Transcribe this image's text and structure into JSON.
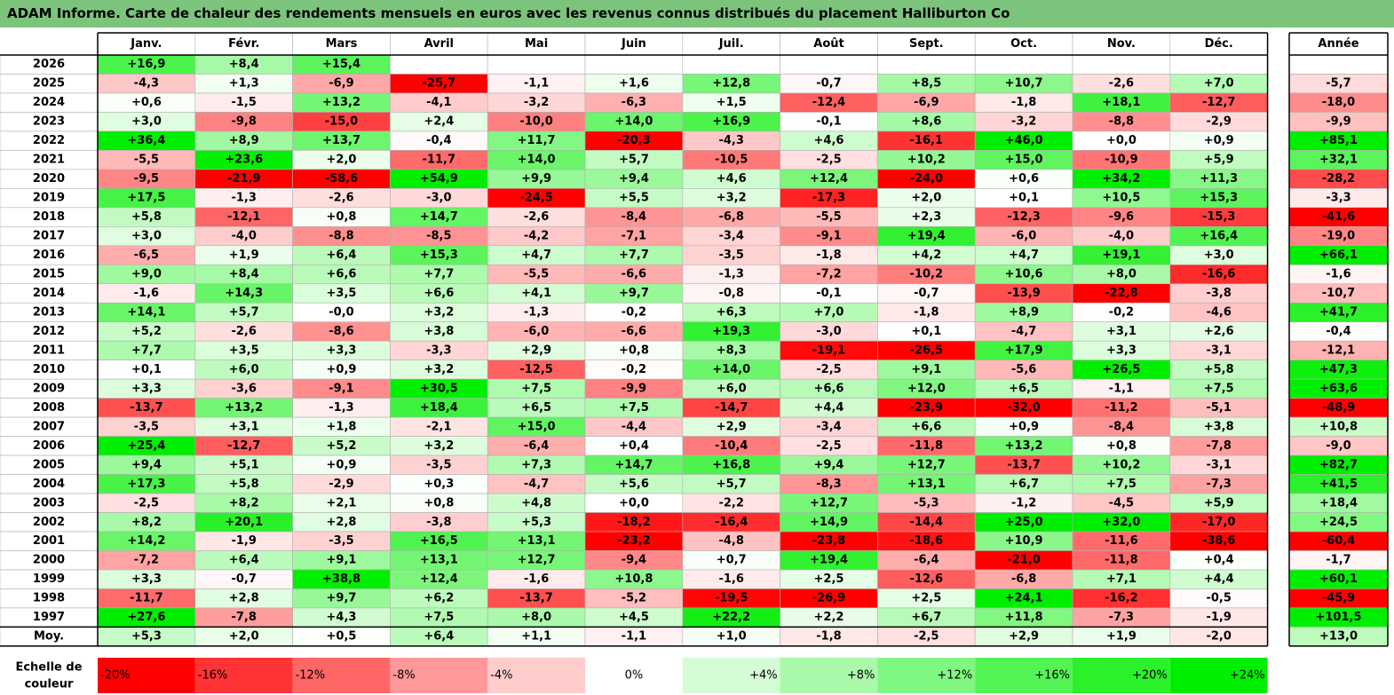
{
  "title": "ADAM Informe. Carte de chaleur des rendements mensuels en euros avec les revenus connus distribués du placement Halliburton Co",
  "chart_data": {
    "type": "heatmap",
    "months": [
      "Janv.",
      "Févr.",
      "Mars",
      "Avril",
      "Mai",
      "Juin",
      "Juil.",
      "Août",
      "Sept.",
      "Oct.",
      "Nov.",
      "Déc."
    ],
    "year_column_header": "Année",
    "rows": [
      {
        "year": "2026",
        "months": [
          "+16,9",
          "+8,4",
          "+15,4",
          "",
          "",
          "",
          "",
          "",
          "",
          "",
          "",
          ""
        ],
        "annual": ""
      },
      {
        "year": "2025",
        "months": [
          "-4,3",
          "+1,3",
          "-6,9",
          "-25,7",
          "-1,1",
          "+1,6",
          "+12,8",
          "-0,7",
          "+8,5",
          "+10,7",
          "-2,6",
          "+7,0"
        ],
        "annual": "-5,7"
      },
      {
        "year": "2024",
        "months": [
          "+0,6",
          "-1,5",
          "+13,2",
          "-4,1",
          "-3,2",
          "-6,3",
          "+1,5",
          "-12,4",
          "-6,9",
          "-1,8",
          "+18,1",
          "-12,7"
        ],
        "annual": "-18,0"
      },
      {
        "year": "2023",
        "months": [
          "+3,0",
          "-9,8",
          "-15,0",
          "+2,4",
          "-10,0",
          "+14,0",
          "+16,9",
          "-0,1",
          "+8,6",
          "-3,2",
          "-8,8",
          "-2,9"
        ],
        "annual": "-9,9"
      },
      {
        "year": "2022",
        "months": [
          "+36,4",
          "+8,9",
          "+13,7",
          "-0,4",
          "+11,7",
          "-20,3",
          "-4,3",
          "+4,6",
          "-16,1",
          "+46,0",
          "+0,0",
          "+0,9"
        ],
        "annual": "+85,1"
      },
      {
        "year": "2021",
        "months": [
          "-5,5",
          "+23,6",
          "+2,0",
          "-11,7",
          "+14,0",
          "+5,7",
          "-10,5",
          "-2,5",
          "+10,2",
          "+15,0",
          "-10,9",
          "+5,9"
        ],
        "annual": "+32,1"
      },
      {
        "year": "2020",
        "months": [
          "-9,5",
          "-21,9",
          "-58,6",
          "+54,9",
          "+9,9",
          "+9,4",
          "+4,6",
          "+12,4",
          "-24,0",
          "+0,6",
          "+34,2",
          "+11,3"
        ],
        "annual": "-28,2"
      },
      {
        "year": "2019",
        "months": [
          "+17,5",
          "-1,3",
          "-2,6",
          "-3,0",
          "-24,5",
          "+5,5",
          "+3,2",
          "-17,3",
          "+2,0",
          "+0,1",
          "+10,5",
          "+15,3"
        ],
        "annual": "-3,3"
      },
      {
        "year": "2018",
        "months": [
          "+5,8",
          "-12,1",
          "+0,8",
          "+14,7",
          "-2,6",
          "-8,4",
          "-6,8",
          "-5,5",
          "+2,3",
          "-12,3",
          "-9,6",
          "-15,3"
        ],
        "annual": "-41,6"
      },
      {
        "year": "2017",
        "months": [
          "+3,0",
          "-4,0",
          "-8,8",
          "-8,5",
          "-4,2",
          "-7,1",
          "-3,4",
          "-9,1",
          "+19,4",
          "-6,0",
          "-4,0",
          "+16,4"
        ],
        "annual": "-19,0"
      },
      {
        "year": "2016",
        "months": [
          "-6,5",
          "+1,9",
          "+6,4",
          "+15,3",
          "+4,7",
          "+7,7",
          "-3,5",
          "-1,8",
          "+4,2",
          "+4,7",
          "+19,1",
          "+3,0"
        ],
        "annual": "+66,1"
      },
      {
        "year": "2015",
        "months": [
          "+9,0",
          "+8,4",
          "+6,6",
          "+7,7",
          "-5,5",
          "-6,6",
          "-1,3",
          "-7,2",
          "-10,2",
          "+10,6",
          "+8,0",
          "-16,6"
        ],
        "annual": "-1,6"
      },
      {
        "year": "2014",
        "months": [
          "-1,6",
          "+14,3",
          "+3,5",
          "+6,6",
          "+4,1",
          "+9,7",
          "-0,8",
          "-0,1",
          "-0,7",
          "-13,9",
          "-22,8",
          "-3,8"
        ],
        "annual": "-10,7"
      },
      {
        "year": "2013",
        "months": [
          "+14,1",
          "+5,7",
          "-0,0",
          "+3,2",
          "-1,3",
          "-0,2",
          "+6,3",
          "+7,0",
          "-1,8",
          "+8,9",
          "-0,2",
          "-4,6"
        ],
        "annual": "+41,7"
      },
      {
        "year": "2012",
        "months": [
          "+5,2",
          "-2,6",
          "-8,6",
          "+3,8",
          "-6,0",
          "-6,6",
          "+19,3",
          "-3,0",
          "+0,1",
          "-4,7",
          "+3,1",
          "+2,6"
        ],
        "annual": "-0,4"
      },
      {
        "year": "2011",
        "months": [
          "+7,7",
          "+3,5",
          "+3,3",
          "-3,3",
          "+2,9",
          "+0,8",
          "+8,3",
          "-19,1",
          "-26,5",
          "+17,9",
          "+3,3",
          "-3,1"
        ],
        "annual": "-12,1"
      },
      {
        "year": "2010",
        "months": [
          "+0,1",
          "+6,0",
          "+0,9",
          "+3,2",
          "-12,5",
          "-0,2",
          "+14,0",
          "-2,5",
          "+9,1",
          "-5,6",
          "+26,5",
          "+5,8"
        ],
        "annual": "+47,3"
      },
      {
        "year": "2009",
        "months": [
          "+3,3",
          "-3,6",
          "-9,1",
          "+30,5",
          "+7,5",
          "-9,9",
          "+6,0",
          "+6,6",
          "+12,0",
          "+6,5",
          "-1,1",
          "+7,5"
        ],
        "annual": "+63,6"
      },
      {
        "year": "2008",
        "months": [
          "-13,7",
          "+13,2",
          "-1,3",
          "+18,4",
          "+6,5",
          "+7,5",
          "-14,7",
          "+4,4",
          "-23,9",
          "-32,0",
          "-11,2",
          "-5,1"
        ],
        "annual": "-48,9"
      },
      {
        "year": "2007",
        "months": [
          "-3,5",
          "+3,1",
          "+1,8",
          "-2,1",
          "+15,0",
          "-4,4",
          "+2,9",
          "-3,4",
          "+6,6",
          "+0,9",
          "-8,4",
          "+3,8"
        ],
        "annual": "+10,8"
      },
      {
        "year": "2006",
        "months": [
          "+25,4",
          "-12,7",
          "+5,2",
          "+3,2",
          "-6,4",
          "+0,4",
          "-10,4",
          "-2,5",
          "-11,8",
          "+13,2",
          "+0,8",
          "-7,8"
        ],
        "annual": "-9,0"
      },
      {
        "year": "2005",
        "months": [
          "+9,4",
          "+5,1",
          "+0,9",
          "-3,5",
          "+7,3",
          "+14,7",
          "+16,8",
          "+9,4",
          "+12,7",
          "-13,7",
          "+10,2",
          "-3,1"
        ],
        "annual": "+82,7"
      },
      {
        "year": "2004",
        "months": [
          "+17,3",
          "+5,8",
          "-2,9",
          "+0,3",
          "-4,7",
          "+5,6",
          "+5,7",
          "-8,3",
          "+13,1",
          "+6,7",
          "+7,5",
          "-7,3"
        ],
        "annual": "+41,5"
      },
      {
        "year": "2003",
        "months": [
          "-2,5",
          "+8,2",
          "+2,1",
          "+0,8",
          "+4,8",
          "+0,0",
          "-2,2",
          "+12,7",
          "-5,3",
          "-1,2",
          "-4,5",
          "+5,9"
        ],
        "annual": "+18,4"
      },
      {
        "year": "2002",
        "months": [
          "+8,2",
          "+20,1",
          "+2,8",
          "-3,8",
          "+5,3",
          "-18,2",
          "-16,4",
          "+14,9",
          "-14,4",
          "+25,0",
          "+32,0",
          "-17,0"
        ],
        "annual": "+24,5"
      },
      {
        "year": "2001",
        "months": [
          "+14,2",
          "-1,9",
          "-3,5",
          "+16,5",
          "+13,1",
          "-23,2",
          "-4,8",
          "-23,8",
          "-18,6",
          "+10,9",
          "-11,6",
          "-38,6"
        ],
        "annual": "-60,4"
      },
      {
        "year": "2000",
        "months": [
          "-7,2",
          "+6,4",
          "+9,1",
          "+13,1",
          "+12,7",
          "-9,4",
          "+0,7",
          "+19,4",
          "-6,4",
          "-21,0",
          "-11,8",
          "+0,4"
        ],
        "annual": "-1,7"
      },
      {
        "year": "1999",
        "months": [
          "+3,3",
          "-0,7",
          "+38,8",
          "+12,4",
          "-1,6",
          "+10,8",
          "-1,6",
          "+2,5",
          "-12,6",
          "-6,8",
          "+7,1",
          "+4,4"
        ],
        "annual": "+60,1"
      },
      {
        "year": "1998",
        "months": [
          "-11,7",
          "+2,8",
          "+9,7",
          "+6,2",
          "-13,7",
          "-5,2",
          "-19,5",
          "-26,9",
          "+2,5",
          "+24,1",
          "-16,2",
          "-0,5"
        ],
        "annual": "-45,9"
      },
      {
        "year": "1997",
        "months": [
          "+27,6",
          "-7,8",
          "+4,3",
          "+7,5",
          "+8,0",
          "+4,5",
          "+22,2",
          "+2,2",
          "+6,7",
          "+11,8",
          "-7,3",
          "-1,9"
        ],
        "annual": "+101,5"
      }
    ],
    "average": {
      "label": "Moy.",
      "months": [
        "+5,3",
        "+2,0",
        "+0,5",
        "+6,4",
        "+1,1",
        "-1,1",
        "+1,0",
        "-1,8",
        "-2,5",
        "+2,9",
        "+1,9",
        "-2,0"
      ],
      "annual": "+13,0"
    },
    "color_scale": {
      "label": "Echelle de couleur",
      "steps": [
        "-20%",
        "-16%",
        "-12%",
        "-8%",
        "-4%",
        "0%",
        "+4%",
        "+8%",
        "+12%",
        "+16%",
        "+20%",
        "+24%"
      ],
      "negative_color": "#ff0000",
      "neutral_color": "#ffffff",
      "positive_color": "#00ee00"
    }
  }
}
